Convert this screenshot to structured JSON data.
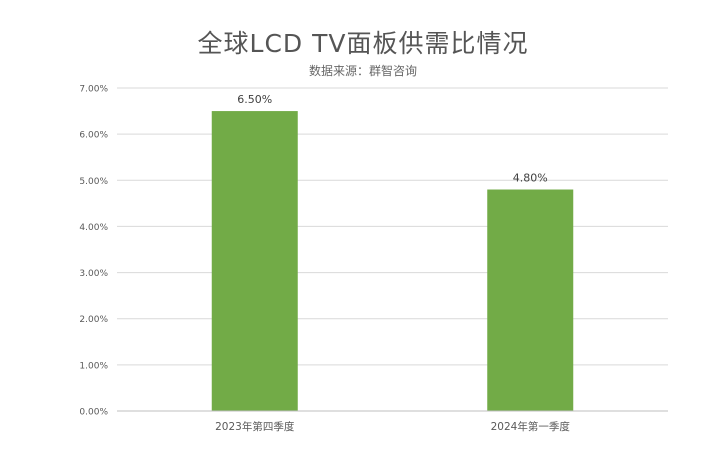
{
  "chart_data": {
    "type": "bar",
    "title": "全球LCD TV面板供需比情况",
    "subtitle": "数据来源：群智咨询",
    "categories": [
      "2023年第四季度",
      "2024年第一季度"
    ],
    "values": [
      6.5,
      4.8
    ],
    "data_labels": [
      "6.50%",
      "4.80%"
    ],
    "y_ticks": [
      0,
      1,
      2,
      3,
      4,
      5,
      6,
      7
    ],
    "y_tick_labels": [
      "0.00%",
      "1.00%",
      "2.00%",
      "3.00%",
      "4.00%",
      "5.00%",
      "6.00%",
      "7.00%"
    ],
    "ylim": [
      0,
      7
    ],
    "grid": true,
    "legend": "none",
    "bar_color": "#72ab47",
    "grid_color": "#d9d9d9",
    "text_color": "#595959"
  }
}
